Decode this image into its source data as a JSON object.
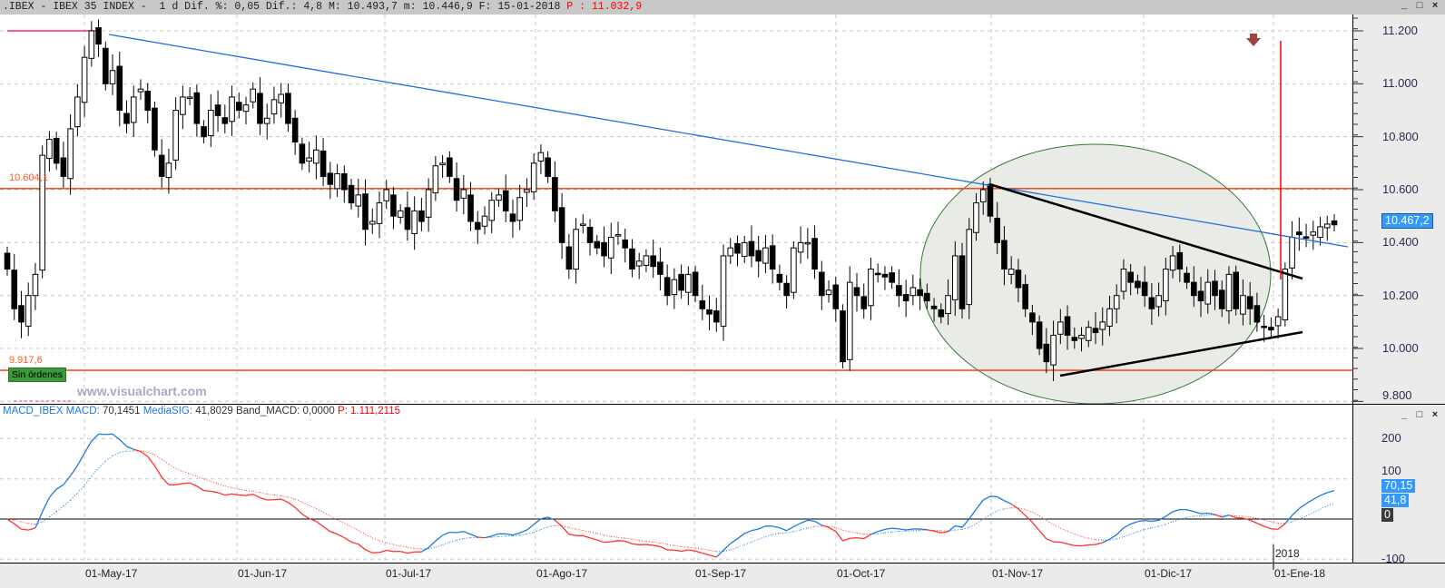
{
  "header": {
    "symbol": ".IBEX - IBEX 35 INDEX -",
    "period": "1 d",
    "dif_pct_label": "Dif. %:",
    "dif_pct": "0,05",
    "dif_label": "Dif.:",
    "dif": "4,8",
    "max_label": "M:",
    "max": "10.493,7",
    "min_label": "m:",
    "min": "10.446,9",
    "date_label": "F:",
    "date": "15-01-2018",
    "p_label": "P :",
    "p": "11.032,9"
  },
  "window_buttons": {
    "minimize": "_",
    "maximize": "□",
    "close": "×"
  },
  "price_panel": {
    "levels": [
      {
        "label": "10.604,1",
        "value": 10604.1
      },
      {
        "label": "9.917,6",
        "value": 9917.6
      }
    ],
    "orders_badge": "Sin órdenes",
    "watermark": "www.visualchart.com",
    "last_price": "10.467,2",
    "colors": {
      "level": "#ff3300",
      "trendline": "#1f6fe0",
      "triangle": "#000000",
      "ellipse": "#2f7a2f",
      "signal_line": "#ff0000",
      "arrow": "#a04040",
      "last_box": "#3399ff"
    }
  },
  "macd_panel": {
    "name": "MACD_IBEX",
    "macd_label": "MACD:",
    "macd": "70,1451",
    "sig_label": "MediaSIG:",
    "sig": "41,8029",
    "band_label": "Band_MACD:",
    "band": "0,0000",
    "p_label": "P:",
    "p": "1.111,2115",
    "box_macd": "70,15",
    "box_sig": "41,8",
    "box_zero": "0"
  },
  "chart_data": {
    "type": "candlestick",
    "y_ticks": [
      "11.200",
      "11.000",
      "10.800",
      "10.600",
      "10.400",
      "10.200",
      "10.000",
      "9.800"
    ],
    "ylim": [
      9800,
      11300
    ],
    "x_labels": [
      "01-May-17",
      "01-Jun-17",
      "01-Jul-17",
      "01-Ago-17",
      "01-Sep-17",
      "01-Oct-17",
      "01-Nov-17",
      "01-Dic-17",
      "01-Ene-18"
    ],
    "year_label": "2018",
    "macd_ticks": [
      "200",
      "100",
      "-100"
    ],
    "macd_ylim": [
      -130,
      250
    ],
    "closes": [
      10300,
      10150,
      10100,
      10200,
      10280,
      10730,
      10790,
      10700,
      10650,
      10830,
      10950,
      11100,
      11200,
      11150,
      11000,
      11050,
      10900,
      10850,
      10950,
      10980,
      10900,
      10750,
      10650,
      10700,
      10900,
      10950,
      10950,
      10850,
      10800,
      10900,
      10880,
      10850,
      10950,
      10900,
      10920,
      10980,
      10850,
      10870,
      10940,
      10960,
      10850,
      10780,
      10700,
      10720,
      10750,
      10650,
      10620,
      10660,
      10600,
      10550,
      10580,
      10450,
      10480,
      10550,
      10600,
      10500,
      10520,
      10450,
      10520,
      10480,
      10600,
      10690,
      10700,
      10650,
      10560,
      10600,
      10480,
      10450,
      10500,
      10560,
      10580,
      10520,
      10480,
      10570,
      10600,
      10700,
      10740,
      10650,
      10520,
      10400,
      10300,
      10450,
      10470,
      10400,
      10380,
      10350,
      10420,
      10430,
      10380,
      10300,
      10330,
      10350,
      10310,
      10280,
      10200,
      10260,
      10220,
      10280,
      10200,
      10150,
      10130,
      10100,
      10350,
      10380,
      10360,
      10400,
      10350,
      10330,
      10380,
      10300,
      10250,
      10200,
      10380,
      10400,
      10400,
      10300,
      10200,
      10220,
      10150,
      9950,
      10250,
      10200,
      10150,
      10300,
      10280,
      10270,
      10250,
      10200,
      10180,
      10230,
      10200,
      10180,
      10150,
      10120,
      10200,
      10350,
      10150,
      10450,
      10550,
      10600,
      10500,
      10400,
      10300,
      10300,
      10230,
      10150,
      10100,
      10000,
      9950,
      10050,
      10100,
      10050,
      10030,
      10050,
      10080,
      10060,
      10100,
      10150,
      10200,
      10300,
      10250,
      10230,
      10200,
      10150,
      10200,
      10300,
      10350,
      10300,
      10250,
      10200,
      10180,
      10250,
      10200,
      10150,
      10280,
      10150,
      10200,
      10150,
      10100,
      10080,
      10070,
      10120,
      10300,
      10420,
      10430,
      10420,
      10440,
      10460,
      10470,
      10467.2
    ]
  }
}
